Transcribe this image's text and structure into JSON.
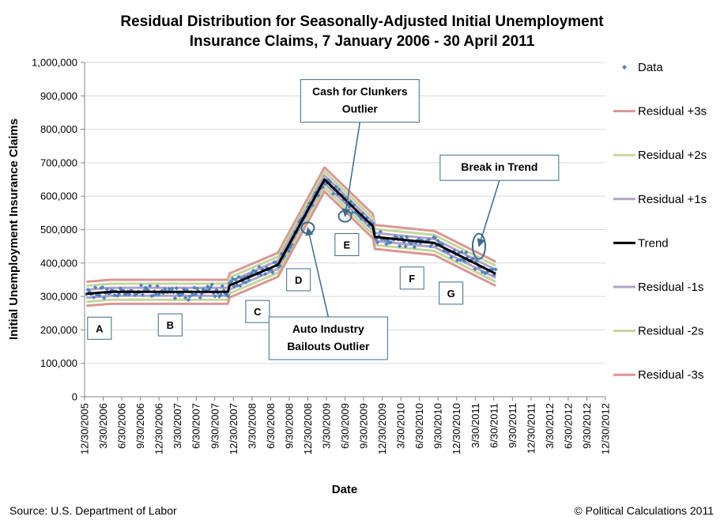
{
  "chart_data": {
    "type": "scatter",
    "title_lines": [
      "Residual Distribution for Seasonally-Adjusted Initial Unemployment",
      "Insurance Claims, 7 January 2006 - 30 April 2011"
    ],
    "xlabel": "Date",
    "ylabel": "Initial Unemployment Insurance Claims",
    "ylim": [
      0,
      1000000
    ],
    "y_ticks": [
      0,
      100000,
      200000,
      300000,
      400000,
      500000,
      600000,
      700000,
      800000,
      900000,
      1000000
    ],
    "y_tick_labels": [
      "0",
      "100,000",
      "200,000",
      "300,000",
      "400,000",
      "500,000",
      "600,000",
      "700,000",
      "800,000",
      "900,000",
      "1,000,000"
    ],
    "x_tick_labels": [
      "12/30/2005",
      "3/30/2006",
      "6/30/2006",
      "9/30/2006",
      "12/30/2006",
      "3/30/2007",
      "6/30/2007",
      "9/30/2007",
      "12/30/2007",
      "3/30/2008",
      "6/30/2008",
      "9/30/2008",
      "12/30/2008",
      "3/30/2009",
      "6/30/2009",
      "9/30/2009",
      "12/30/2009",
      "3/30/2010",
      "6/30/2010",
      "9/30/2010",
      "12/30/2010",
      "3/30/2011",
      "6/30/2011",
      "9/30/2011",
      "12/30/2011",
      "3/30/2012",
      "6/30/2012",
      "9/30/2012",
      "12/30/2012"
    ],
    "xlim_quarters": [
      0,
      28
    ],
    "trend": {
      "name": "Trend",
      "color": "#000000",
      "x_quarter": [
        0.1,
        1.4,
        7.7,
        7.8,
        10.4,
        12.9,
        15.5,
        15.6,
        18.8,
        22.1
      ],
      "y": [
        308000,
        314000,
        314000,
        333000,
        395000,
        650000,
        510000,
        478000,
        460000,
        368000
      ]
    },
    "residual_bands": [
      {
        "name": "Residual +3s",
        "offset": 36000,
        "color": "#d99694"
      },
      {
        "name": "Residual +2s",
        "offset": 24000,
        "color": "#c3d69b"
      },
      {
        "name": "Residual +1s",
        "offset": 12000,
        "color": "#b3a2c7"
      },
      {
        "name": "Residual -1s",
        "offset": -12000,
        "color": "#b3a2c7"
      },
      {
        "name": "Residual -2s",
        "offset": -24000,
        "color": "#c3d69b"
      },
      {
        "name": "Residual -3s",
        "offset": -36000,
        "color": "#d99694"
      }
    ],
    "data_series": {
      "name": "Data",
      "marker": "diamond",
      "color": "#4f81bd",
      "n_points": 278,
      "seed": 7
    },
    "legend": {
      "placement": "right",
      "items": [
        "Data",
        "Residual +3s",
        "Residual +2s",
        "Residual +1s",
        "Trend",
        "Residual -1s",
        "Residual -2s",
        "Residual -3s"
      ]
    },
    "segments": [
      {
        "label": "A",
        "x_quarter": 0.8,
        "y": 205000
      },
      {
        "label": "B",
        "x_quarter": 4.6,
        "y": 215000
      },
      {
        "label": "C",
        "x_quarter": 9.3,
        "y": 255000
      },
      {
        "label": "D",
        "x_quarter": 11.5,
        "y": 350000
      },
      {
        "label": "E",
        "x_quarter": 14.1,
        "y": 455000
      },
      {
        "label": "F",
        "x_quarter": 17.6,
        "y": 355000
      },
      {
        "label": "G",
        "x_quarter": 19.7,
        "y": 310000
      }
    ],
    "annotations": [
      {
        "lines": [
          "Cash for Clunkers",
          "Outlier"
        ],
        "x_quarter": 14.8,
        "y": 885000,
        "target_x_quarter": 14.0,
        "target_y": 540000
      },
      {
        "lines": [
          "Auto Industry",
          "Bailouts Outlier"
        ],
        "x_quarter": 13.1,
        "y": 175000,
        "target_x_quarter": 12.0,
        "target_y": 505000
      },
      {
        "lines": [
          "Break in Trend"
        ],
        "x_quarter": 22.3,
        "y": 685000,
        "target_x_quarter": 21.2,
        "target_y": 450000
      }
    ]
  },
  "footer": {
    "source": "Source: U.S. Department of Labor",
    "copyright": "© Political Calculations 2011"
  }
}
